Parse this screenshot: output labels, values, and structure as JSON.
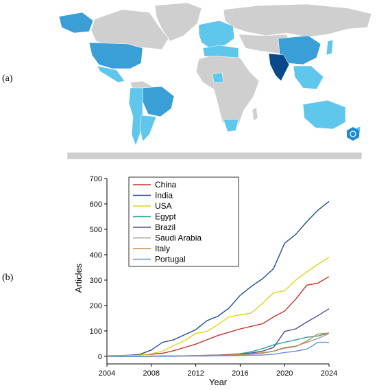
{
  "panels": {
    "a_label": "(a)",
    "b_label": "(b)"
  },
  "map": {
    "colors": {
      "land": "#cfcfcf",
      "light": "#5fc6ec",
      "medium": "#3a9fd6",
      "dark": "#1d74b5",
      "darkest": "#0b4a8a"
    },
    "logo_icon": "hexagon-badge-icon"
  },
  "chart_data": {
    "type": "line",
    "xlabel": "Year",
    "ylabel": "Articles",
    "xlim": [
      2004,
      2024
    ],
    "ylim": [
      -30,
      700
    ],
    "xticks": [
      2004,
      2008,
      2012,
      2016,
      2020,
      2024
    ],
    "yticks": [
      0,
      100,
      200,
      300,
      400,
      500,
      600,
      700
    ],
    "legend_position": "top-left",
    "x": [
      2004,
      2005,
      2006,
      2007,
      2008,
      2009,
      2010,
      2011,
      2012,
      2013,
      2014,
      2015,
      2016,
      2017,
      2018,
      2019,
      2020,
      2021,
      2022,
      2023,
      2024
    ],
    "series": [
      {
        "name": "China",
        "color": "#c8302a",
        "values": [
          2,
          3,
          4,
          6,
          8,
          12,
          22,
          35,
          48,
          65,
          82,
          95,
          108,
          118,
          128,
          155,
          178,
          225,
          280,
          288,
          314
        ]
      },
      {
        "name": "India",
        "color": "#1f4e8c",
        "values": [
          1,
          2,
          4,
          8,
          25,
          55,
          65,
          85,
          105,
          140,
          158,
          190,
          240,
          275,
          305,
          345,
          445,
          480,
          530,
          575,
          610
        ]
      },
      {
        "name": "USA",
        "color": "#e0d21a",
        "values": [
          1,
          2,
          3,
          5,
          10,
          20,
          42,
          62,
          90,
          98,
          125,
          155,
          163,
          170,
          208,
          250,
          258,
          300,
          332,
          362,
          390
        ]
      },
      {
        "name": "Egypt",
        "color": "#2aa58a",
        "values": [
          0,
          0,
          0,
          0,
          0,
          1,
          1,
          2,
          2,
          3,
          4,
          6,
          10,
          18,
          30,
          45,
          55,
          65,
          75,
          80,
          92
        ]
      },
      {
        "name": "Brazil",
        "color": "#4a4a9c",
        "values": [
          0,
          0,
          0,
          0,
          0,
          1,
          1,
          2,
          3,
          4,
          5,
          7,
          9,
          13,
          20,
          35,
          98,
          108,
          135,
          160,
          187
        ]
      },
      {
        "name": "Saudi Arabia",
        "color": "#9a9a9a",
        "values": [
          0,
          0,
          0,
          0,
          0,
          0,
          1,
          1,
          2,
          2,
          3,
          4,
          6,
          8,
          12,
          20,
          35,
          40,
          55,
          70,
          90
        ]
      },
      {
        "name": "Italy",
        "color": "#c88a4a",
        "values": [
          0,
          0,
          0,
          0,
          1,
          1,
          2,
          2,
          3,
          3,
          4,
          5,
          7,
          10,
          14,
          20,
          32,
          38,
          60,
          88,
          92
        ]
      },
      {
        "name": "Portugal",
        "color": "#6f8fd8",
        "values": [
          0,
          0,
          0,
          0,
          0,
          0,
          0,
          1,
          1,
          1,
          2,
          2,
          3,
          4,
          5,
          8,
          15,
          20,
          28,
          55,
          55
        ]
      }
    ]
  }
}
